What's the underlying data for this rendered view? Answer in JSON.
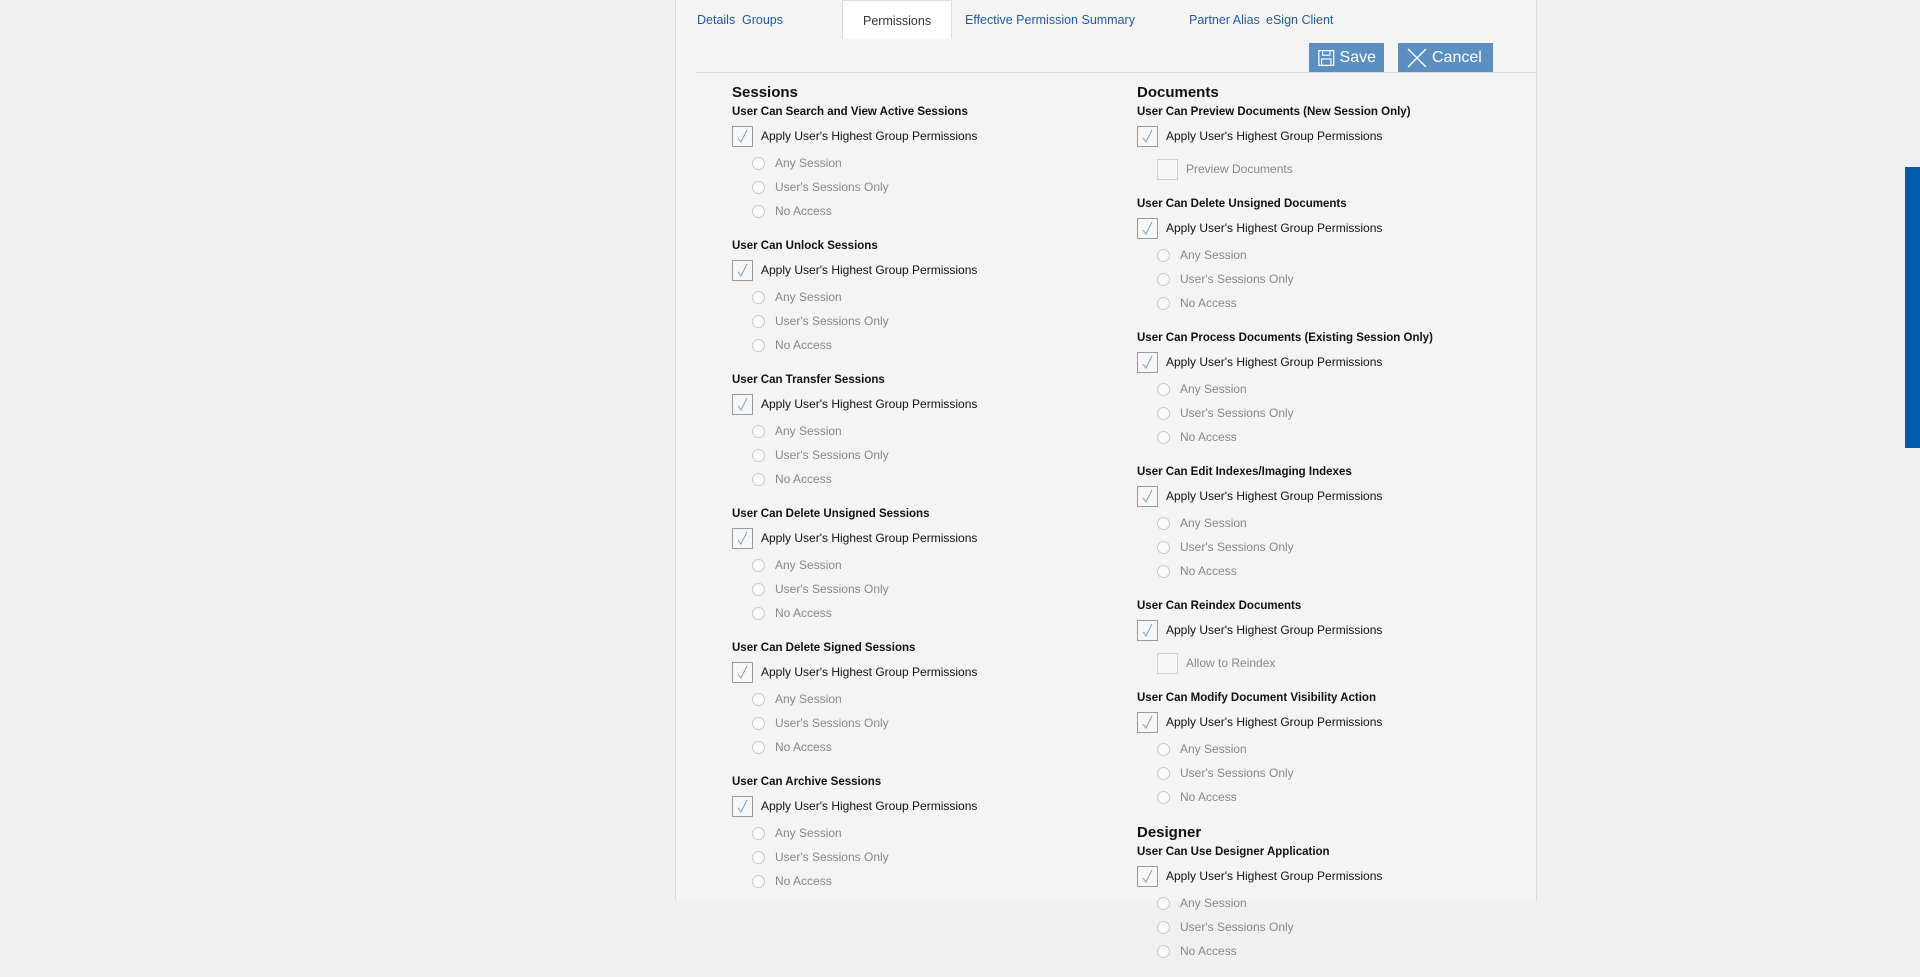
{
  "tabs": [
    {
      "label": "Details",
      "active": false
    },
    {
      "label": "Groups",
      "active": false
    },
    {
      "label": "Permissions",
      "active": true
    },
    {
      "label": "Effective Permission Summary",
      "active": false
    },
    {
      "label": "Partner Alias",
      "active": false
    },
    {
      "label": "eSign Client",
      "active": false
    }
  ],
  "toolbar": {
    "save_label": "Save",
    "cancel_label": "Cancel",
    "save_icon": "floppy-disk-icon",
    "cancel_icon": "x-icon",
    "button_color": "#5b8fc0"
  },
  "apply_label": "Apply User's Highest Group Permissions",
  "radio_options": [
    "Any Session",
    "User's Sessions Only",
    "No Access"
  ],
  "left": [
    {
      "heading": "Sessions",
      "groups": [
        {
          "title": "User Can Search and View Active Sessions",
          "checked": true,
          "type": "radios"
        },
        {
          "title": "User Can Unlock Sessions",
          "checked": true,
          "type": "radios"
        },
        {
          "title": "User Can Transfer Sessions",
          "checked": true,
          "type": "radios"
        },
        {
          "title": "User Can Delete Unsigned Sessions",
          "checked": true,
          "type": "radios"
        },
        {
          "title": "User Can Delete Signed Sessions",
          "checked": true,
          "type": "radios"
        },
        {
          "title": "User Can Archive Sessions",
          "checked": true,
          "type": "radios"
        }
      ]
    }
  ],
  "right": [
    {
      "heading": "Documents",
      "groups": [
        {
          "title": "User Can Preview Documents (New Session Only)",
          "checked": true,
          "type": "checkbox",
          "sub_label": "Preview Documents"
        },
        {
          "title": "User Can Delete Unsigned Documents",
          "checked": true,
          "type": "radios"
        },
        {
          "title": "User Can Process Documents (Existing Session Only)",
          "checked": true,
          "type": "radios"
        },
        {
          "title": "User Can Edit Indexes/Imaging Indexes",
          "checked": true,
          "type": "radios"
        },
        {
          "title": "User Can Reindex Documents",
          "checked": true,
          "type": "checkbox",
          "sub_label": "Allow to Reindex"
        },
        {
          "title": "User Can Modify Document Visibility Action",
          "checked": true,
          "type": "radios"
        }
      ]
    },
    {
      "heading": "Designer",
      "groups": [
        {
          "title": "User Can Use Designer Application",
          "checked": true,
          "type": "radios"
        }
      ]
    }
  ],
  "scrollbar_color": "#005ca8"
}
